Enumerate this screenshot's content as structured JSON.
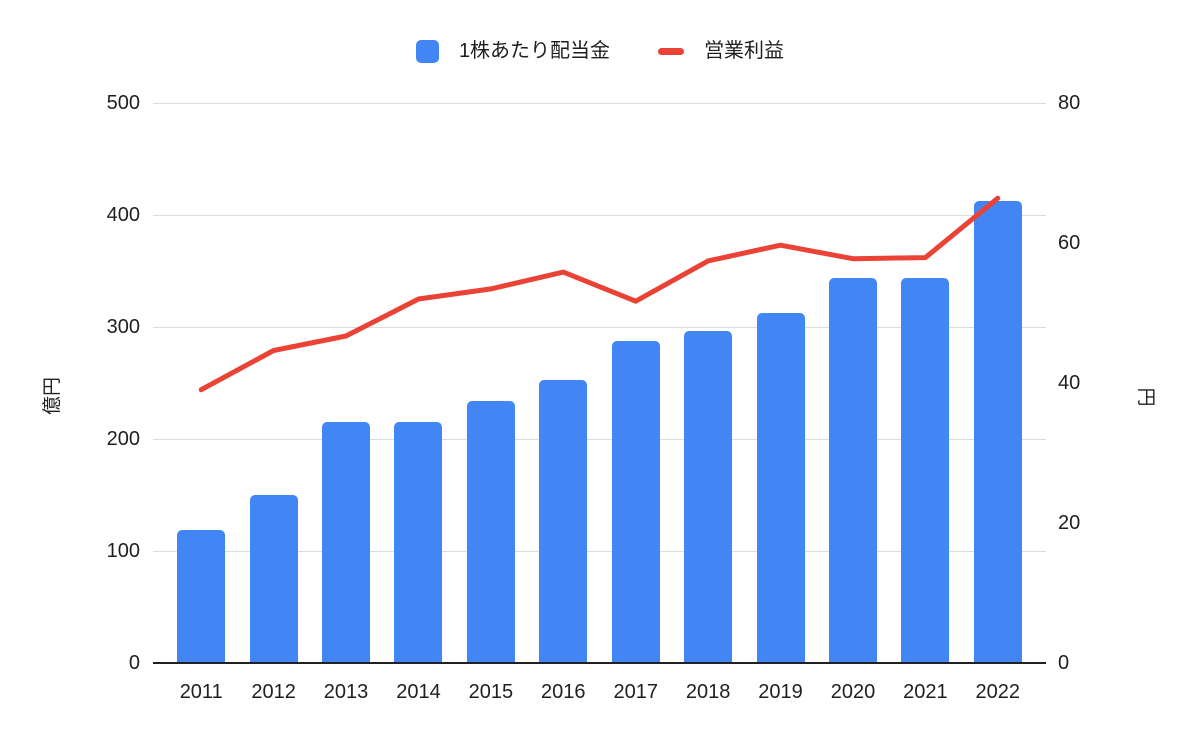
{
  "chart_data": {
    "type": "bar+line",
    "categories": [
      "2011",
      "2012",
      "2013",
      "2014",
      "2015",
      "2016",
      "2017",
      "2018",
      "2019",
      "2020",
      "2021",
      "2022"
    ],
    "series": [
      {
        "name": "1株あたり配当金",
        "type": "bar",
        "axis": "right",
        "unit": "円",
        "color": "#4285F4",
        "values": [
          19,
          24,
          34.5,
          34.5,
          37.5,
          40.5,
          46,
          47.5,
          50,
          55,
          55,
          66
        ]
      },
      {
        "name": "営業利益",
        "type": "line",
        "axis": "left",
        "unit": "億円",
        "color": "#EA4335",
        "values": [
          244,
          279,
          292,
          325,
          334,
          349,
          323,
          359,
          373,
          361,
          362,
          415
        ]
      }
    ],
    "left_axis": {
      "label": "億円",
      "range": [
        0,
        500
      ],
      "ticks": [
        0,
        100,
        200,
        300,
        400,
        500
      ]
    },
    "right_axis": {
      "label": "円",
      "range": [
        0,
        80
      ],
      "ticks": [
        0,
        20,
        40,
        60,
        80
      ]
    },
    "grid": true,
    "legend_position": "top",
    "title": ""
  },
  "colors": {
    "bar": "#4285F4",
    "line": "#EA4335",
    "gridline": "#dadce0",
    "axis_line": "#212121",
    "text": "#1f1f1f",
    "background": "#ffffff"
  }
}
